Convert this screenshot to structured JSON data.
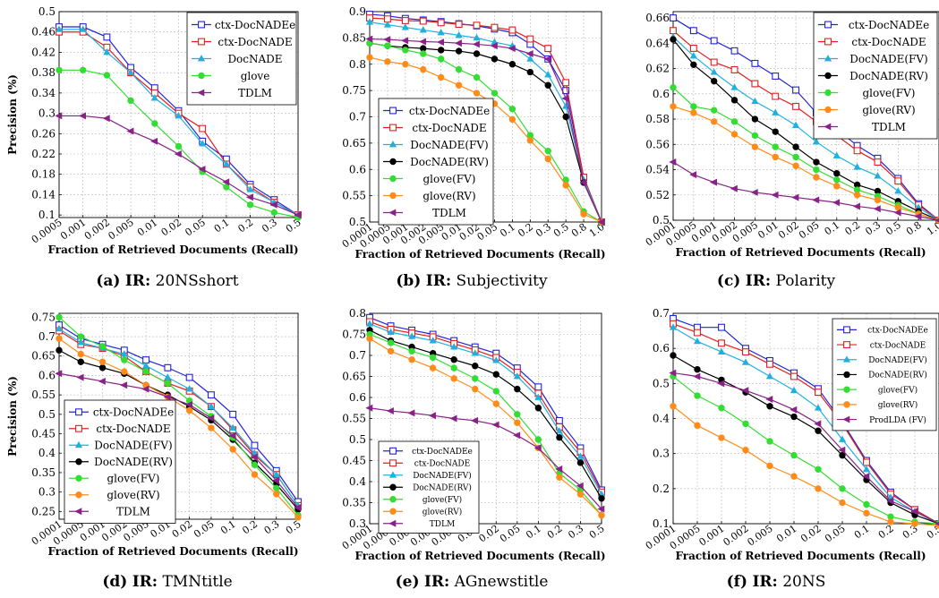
{
  "figure": {
    "panels": [
      {
        "label": "(a)",
        "ir": "IR:",
        "name": "20NSshort"
      },
      {
        "label": "(b)",
        "ir": "IR:",
        "name": "Subjectivity"
      },
      {
        "label": "(c)",
        "ir": "IR:",
        "name": "Polarity"
      },
      {
        "label": "(d)",
        "ir": "IR:",
        "name": "TMNtitle"
      },
      {
        "label": "(e)",
        "ir": "IR:",
        "name": "AGnewstitle"
      },
      {
        "label": "(f)",
        "ir": "IR:",
        "name": "20NS"
      }
    ],
    "colors": {
      "ctx-DocNADEe": "#2323d8",
      "ctx-DocNADE": "#e02020",
      "DocNADE": "#20b0e0",
      "DocNADE(FV)": "#20b0e0",
      "DocNADE(RV)": "#000000",
      "glove": "#33dd33",
      "glove(FV)": "#33dd33",
      "glove(RV)": "#ff8c1a",
      "TDLM": "#882288",
      "ProdLDA (FV)": "#882288"
    }
  },
  "chart_data": [
    {
      "type": "line",
      "title": "",
      "xlabel": "Fraction of Retrieved Documents (Recall)",
      "ylabel": "Precision (%)",
      "x": [
        "0.0005",
        "0.001",
        "0.002",
        "0.005",
        "0.01",
        "0.02",
        "0.05",
        "0.1",
        "0.2",
        "0.3",
        "0.5"
      ],
      "ylim": [
        0.095,
        0.5
      ],
      "yticks": [
        "0.1",
        "0.14",
        "0.18",
        "0.22",
        "0.26",
        "0.3",
        "0.34",
        "0.38",
        "0.42",
        "0.46",
        "0.5"
      ],
      "grid": true,
      "legend_position": "top-right",
      "series": [
        {
          "name": "ctx-DocNADEe",
          "values": [
            0.47,
            0.47,
            0.45,
            0.39,
            0.35,
            0.305,
            0.245,
            0.21,
            0.16,
            0.13,
            0.1
          ]
        },
        {
          "name": "ctx-DocNADE",
          "values": [
            0.46,
            0.46,
            0.43,
            0.38,
            0.34,
            0.3,
            0.27,
            0.2,
            0.155,
            0.125,
            0.1
          ]
        },
        {
          "name": "DocNADE",
          "values": [
            0.465,
            0.465,
            0.42,
            0.38,
            0.33,
            0.295,
            0.24,
            0.2,
            0.15,
            0.125,
            0.1
          ]
        },
        {
          "name": "glove",
          "values": [
            0.385,
            0.385,
            0.375,
            0.325,
            0.28,
            0.235,
            0.185,
            0.155,
            0.12,
            0.105,
            0.095
          ]
        },
        {
          "name": "TDLM",
          "values": [
            0.295,
            0.295,
            0.29,
            0.265,
            0.245,
            0.22,
            0.19,
            0.165,
            0.135,
            0.12,
            0.1
          ]
        }
      ]
    },
    {
      "type": "line",
      "title": "",
      "xlabel": "Fraction of Retrieved Documents (Recall)",
      "ylabel": "",
      "x": [
        "0.0001",
        "0.0005",
        "0.001",
        "0.002",
        "0.005",
        "0.01",
        "0.02",
        "0.05",
        "0.1",
        "0.2",
        "0.3",
        "0.5",
        "0.8",
        "1.0"
      ],
      "ylim": [
        0.5,
        0.9
      ],
      "yticks": [
        "0.5",
        "0.55",
        "0.6",
        "0.65",
        "0.7",
        "0.75",
        "0.8",
        "0.85",
        "0.9"
      ],
      "grid": true,
      "legend_position": "bottom-left",
      "series": [
        {
          "name": "ctx-DocNADEe",
          "values": [
            0.895,
            0.892,
            0.887,
            0.884,
            0.881,
            0.877,
            0.873,
            0.867,
            0.86,
            0.838,
            0.81,
            0.75,
            0.585,
            0.5
          ]
        },
        {
          "name": "ctx-DocNADE",
          "values": [
            0.888,
            0.886,
            0.883,
            0.882,
            0.879,
            0.876,
            0.874,
            0.87,
            0.865,
            0.848,
            0.83,
            0.765,
            0.585,
            0.5
          ]
        },
        {
          "name": "DocNADE(FV)",
          "values": [
            0.88,
            0.875,
            0.87,
            0.865,
            0.86,
            0.855,
            0.85,
            0.842,
            0.835,
            0.81,
            0.78,
            0.72,
            0.58,
            0.5
          ]
        },
        {
          "name": "DocNADE(RV)",
          "values": [
            0.84,
            0.835,
            0.832,
            0.83,
            0.827,
            0.825,
            0.82,
            0.81,
            0.8,
            0.785,
            0.76,
            0.7,
            0.575,
            0.5
          ]
        },
        {
          "name": "glove(FV)",
          "values": [
            0.84,
            0.835,
            0.827,
            0.82,
            0.81,
            0.79,
            0.775,
            0.745,
            0.715,
            0.665,
            0.635,
            0.58,
            0.52,
            0.5
          ]
        },
        {
          "name": "glove(RV)",
          "values": [
            0.813,
            0.805,
            0.8,
            0.79,
            0.775,
            0.76,
            0.745,
            0.725,
            0.695,
            0.655,
            0.62,
            0.57,
            0.515,
            0.5
          ]
        },
        {
          "name": "TDLM",
          "values": [
            0.848,
            0.847,
            0.845,
            0.843,
            0.842,
            0.84,
            0.838,
            0.835,
            0.83,
            0.82,
            0.81,
            0.735,
            0.575,
            0.5
          ]
        }
      ]
    },
    {
      "type": "line",
      "title": "",
      "xlabel": "Fraction of Retrieved Documents (Recall)",
      "ylabel": "",
      "x": [
        "0.0001",
        "0.0005",
        "0.001",
        "0.002",
        "0.005",
        "0.01",
        "0.02",
        "0.05",
        "0.1",
        "0.2",
        "0.3",
        "0.5",
        "0.8",
        "1.0"
      ],
      "ylim": [
        0.5,
        0.665
      ],
      "yticks": [
        "0.5",
        "0.52",
        "0.54",
        "0.56",
        "0.58",
        "0.6",
        "0.62",
        "0.64",
        "0.66"
      ],
      "grid": true,
      "legend_position": "top-right",
      "series": [
        {
          "name": "ctx-DocNADEe",
          "values": [
            0.66,
            0.65,
            0.642,
            0.634,
            0.624,
            0.614,
            0.603,
            0.585,
            0.572,
            0.559,
            0.549,
            0.533,
            0.513,
            0.5
          ]
        },
        {
          "name": "ctx-DocNADE",
          "values": [
            0.65,
            0.636,
            0.625,
            0.619,
            0.608,
            0.598,
            0.59,
            0.578,
            0.567,
            0.555,
            0.546,
            0.531,
            0.512,
            0.5
          ]
        },
        {
          "name": "DocNADE(FV)",
          "values": [
            0.645,
            0.63,
            0.617,
            0.605,
            0.594,
            0.585,
            0.575,
            0.562,
            0.551,
            0.542,
            0.535,
            0.523,
            0.51,
            0.5
          ]
        },
        {
          "name": "DocNADE(RV)",
          "values": [
            0.643,
            0.623,
            0.61,
            0.595,
            0.58,
            0.57,
            0.558,
            0.546,
            0.537,
            0.528,
            0.523,
            0.515,
            0.507,
            0.5
          ]
        },
        {
          "name": "glove(FV)",
          "values": [
            0.605,
            0.59,
            0.587,
            0.578,
            0.567,
            0.558,
            0.55,
            0.54,
            0.532,
            0.524,
            0.519,
            0.512,
            0.505,
            0.5
          ]
        },
        {
          "name": "glove(RV)",
          "values": [
            0.59,
            0.585,
            0.578,
            0.568,
            0.558,
            0.55,
            0.543,
            0.534,
            0.527,
            0.52,
            0.516,
            0.51,
            0.505,
            0.5
          ]
        },
        {
          "name": "TDLM",
          "values": [
            0.546,
            0.536,
            0.53,
            0.525,
            0.522,
            0.52,
            0.518,
            0.516,
            0.514,
            0.511,
            0.509,
            0.506,
            0.503,
            0.5
          ]
        }
      ]
    },
    {
      "type": "line",
      "title": "",
      "xlabel": "Fraction of Retrieved Documents (Recall)",
      "ylabel": "Precision (%)",
      "x": [
        "0.0001",
        "0.0005",
        "0.001",
        "0.002",
        "0.005",
        "0.01",
        "0.02",
        "0.05",
        "0.1",
        "0.2",
        "0.3",
        "0.5"
      ],
      "ylim": [
        0.23,
        0.76
      ],
      "yticks": [
        "0.25",
        "0.3",
        "0.35",
        "0.4",
        "0.45",
        "0.5",
        "0.55",
        "0.6",
        "0.65",
        "0.7",
        "0.75"
      ],
      "grid": true,
      "legend_position": "bottom-left",
      "series": [
        {
          "name": "ctx-DocNADEe",
          "values": [
            0.73,
            0.695,
            0.68,
            0.665,
            0.64,
            0.62,
            0.595,
            0.55,
            0.5,
            0.42,
            0.355,
            0.275
          ]
        },
        {
          "name": "ctx-DocNADE",
          "values": [
            0.715,
            0.68,
            0.67,
            0.65,
            0.61,
            0.58,
            0.56,
            0.52,
            0.46,
            0.395,
            0.345,
            0.265
          ]
        },
        {
          "name": "DocNADE(FV)",
          "values": [
            0.72,
            0.685,
            0.67,
            0.655,
            0.625,
            0.595,
            0.565,
            0.52,
            0.465,
            0.4,
            0.345,
            0.265
          ]
        },
        {
          "name": "DocNADE(RV)",
          "values": [
            0.665,
            0.635,
            0.62,
            0.605,
            0.575,
            0.55,
            0.52,
            0.485,
            0.435,
            0.375,
            0.32,
            0.255
          ]
        },
        {
          "name": "glove(FV)",
          "values": [
            0.75,
            0.7,
            0.675,
            0.64,
            0.61,
            0.58,
            0.535,
            0.495,
            0.44,
            0.37,
            0.31,
            0.24
          ]
        },
        {
          "name": "glove(RV)",
          "values": [
            0.695,
            0.655,
            0.635,
            0.61,
            0.575,
            0.545,
            0.51,
            0.465,
            0.41,
            0.345,
            0.295,
            0.235
          ]
        },
        {
          "name": "TDLM",
          "values": [
            0.605,
            0.595,
            0.585,
            0.575,
            0.565,
            0.545,
            0.525,
            0.49,
            0.445,
            0.39,
            0.33,
            0.26
          ]
        }
      ]
    },
    {
      "type": "line",
      "title": "",
      "xlabel": "Fraction of Retrieved Documents (Recall)",
      "ylabel": "",
      "x": [
        "0.0001",
        "0.0005",
        "0.001",
        "0.002",
        "0.005",
        "0.01",
        "0.02",
        "0.05",
        "0.1",
        "0.2",
        "0.3",
        "0.5"
      ],
      "ylim": [
        0.3,
        0.8
      ],
      "yticks": [
        "0.3",
        "0.35",
        "0.4",
        "0.45",
        "0.5",
        "0.55",
        "0.6",
        "0.65",
        "0.7",
        "0.75",
        "0.8"
      ],
      "grid": true,
      "legend_position": "bottom-left",
      "series": [
        {
          "name": "ctx-DocNADEe",
          "values": [
            0.79,
            0.77,
            0.76,
            0.75,
            0.735,
            0.72,
            0.705,
            0.67,
            0.625,
            0.545,
            0.48,
            0.38
          ]
        },
        {
          "name": "ctx-DocNADE",
          "values": [
            0.78,
            0.762,
            0.753,
            0.744,
            0.728,
            0.713,
            0.695,
            0.66,
            0.61,
            0.53,
            0.47,
            0.375
          ]
        },
        {
          "name": "DocNADE(FV)",
          "values": [
            0.775,
            0.755,
            0.745,
            0.735,
            0.72,
            0.705,
            0.688,
            0.65,
            0.6,
            0.52,
            0.46,
            0.37
          ]
        },
        {
          "name": "DocNADE(RV)",
          "values": [
            0.76,
            0.735,
            0.72,
            0.705,
            0.69,
            0.675,
            0.655,
            0.62,
            0.575,
            0.505,
            0.445,
            0.36
          ]
        },
        {
          "name": "glove(FV)",
          "values": [
            0.75,
            0.73,
            0.71,
            0.695,
            0.67,
            0.645,
            0.615,
            0.56,
            0.5,
            0.42,
            0.38,
            0.32
          ]
        },
        {
          "name": "glove(RV)",
          "values": [
            0.74,
            0.71,
            0.69,
            0.67,
            0.645,
            0.62,
            0.585,
            0.54,
            0.48,
            0.41,
            0.37,
            0.32
          ]
        },
        {
          "name": "TDLM",
          "values": [
            0.575,
            0.568,
            0.563,
            0.557,
            0.55,
            0.545,
            0.535,
            0.51,
            0.48,
            0.43,
            0.39,
            0.335
          ]
        }
      ]
    },
    {
      "type": "line",
      "title": "",
      "xlabel": "Fraction of Retrieved Documents (Recall)",
      "ylabel": "",
      "x": [
        "0.0001",
        "0.0005",
        "0.001",
        "0.002",
        "0.005",
        "0.01",
        "0.02",
        "0.05",
        "0.1",
        "0.2",
        "0.3",
        "0.5"
      ],
      "ylim": [
        0.1,
        0.7
      ],
      "yticks": [
        "0.1",
        "0.2",
        "0.3",
        "0.4",
        "0.5",
        "0.6",
        "0.7"
      ],
      "grid": true,
      "legend_position": "top-right",
      "series": [
        {
          "name": "ctx-DocNADEe",
          "values": [
            0.685,
            0.66,
            0.66,
            0.6,
            0.565,
            0.53,
            0.485,
            0.39,
            0.28,
            0.19,
            0.14,
            0.1
          ]
        },
        {
          "name": "ctx-DocNADE",
          "values": [
            0.67,
            0.645,
            0.615,
            0.59,
            0.555,
            0.52,
            0.475,
            0.385,
            0.275,
            0.185,
            0.14,
            0.1
          ]
        },
        {
          "name": "DocNADE(FV)",
          "values": [
            0.66,
            0.62,
            0.59,
            0.56,
            0.52,
            0.48,
            0.43,
            0.34,
            0.255,
            0.175,
            0.135,
            0.1
          ]
        },
        {
          "name": "DocNADE(RV)",
          "values": [
            0.58,
            0.54,
            0.51,
            0.475,
            0.435,
            0.405,
            0.365,
            0.295,
            0.225,
            0.16,
            0.125,
            0.1
          ]
        },
        {
          "name": "glove(FV)",
          "values": [
            0.52,
            0.465,
            0.43,
            0.385,
            0.335,
            0.295,
            0.255,
            0.2,
            0.155,
            0.12,
            0.105,
            0.1
          ]
        },
        {
          "name": "glove(RV)",
          "values": [
            0.435,
            0.38,
            0.345,
            0.31,
            0.265,
            0.235,
            0.2,
            0.16,
            0.13,
            0.105,
            0.1,
            0.095
          ]
        },
        {
          "name": "ProdLDA (FV)",
          "values": [
            0.53,
            0.52,
            0.5,
            0.48,
            0.455,
            0.425,
            0.385,
            0.31,
            0.235,
            0.165,
            0.135,
            0.1
          ]
        }
      ]
    }
  ]
}
